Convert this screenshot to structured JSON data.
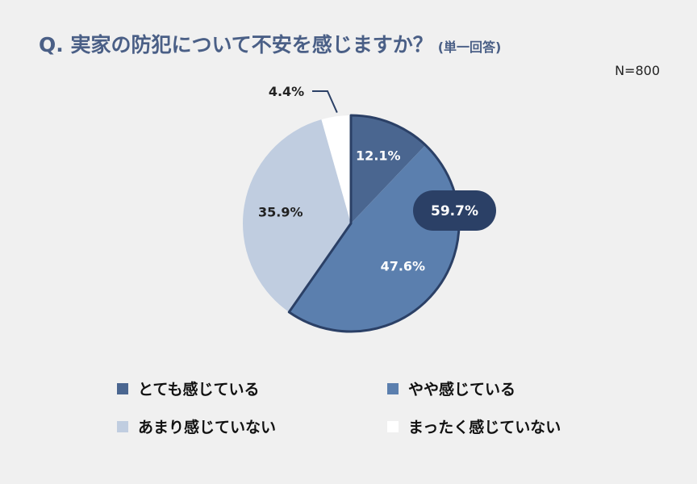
{
  "header": {
    "title": "Q. 実家の防犯について不安を感じますか？",
    "subtitle": "(単一回答)",
    "sample_size": "N=800"
  },
  "chart_data": {
    "type": "pie",
    "categories": [
      "とても感じている",
      "やや感じている",
      "あまり感じていない",
      "まったく感じていない"
    ],
    "values": [
      12.1,
      47.6,
      35.9,
      4.4
    ],
    "labels": [
      "12.1%",
      "47.6%",
      "35.9%",
      "4.4%"
    ],
    "colors": [
      "#4a6690",
      "#5b7fae",
      "#c0cde0",
      "#ffffff"
    ],
    "callout": {
      "text": "59.7%",
      "color": "#2b4066"
    },
    "legend_position": "bottom"
  }
}
